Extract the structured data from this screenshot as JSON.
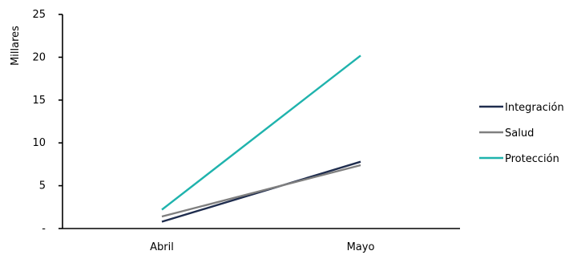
{
  "chart_data": {
    "type": "line",
    "ylabel": "Millares",
    "xlabel": "",
    "categories": [
      "Abril",
      "Mayo"
    ],
    "ylim": [
      0,
      25
    ],
    "y_ticks": [
      {
        "value": 0,
        "label": "-"
      },
      {
        "value": 5,
        "label": "5"
      },
      {
        "value": 10,
        "label": "10"
      },
      {
        "value": 15,
        "label": "15"
      },
      {
        "value": 20,
        "label": "20"
      },
      {
        "value": 25,
        "label": "25"
      }
    ],
    "grid": false,
    "legend_position": "right",
    "series": [
      {
        "name": "Integración",
        "values": [
          0.8,
          7.8
        ],
        "color": "#1f2d4e"
      },
      {
        "name": "Salud",
        "values": [
          1.4,
          7.4
        ],
        "color": "#7f7f7f"
      },
      {
        "name": "Protección",
        "values": [
          2.2,
          20.2
        ],
        "color": "#1fb3ad"
      }
    ]
  }
}
